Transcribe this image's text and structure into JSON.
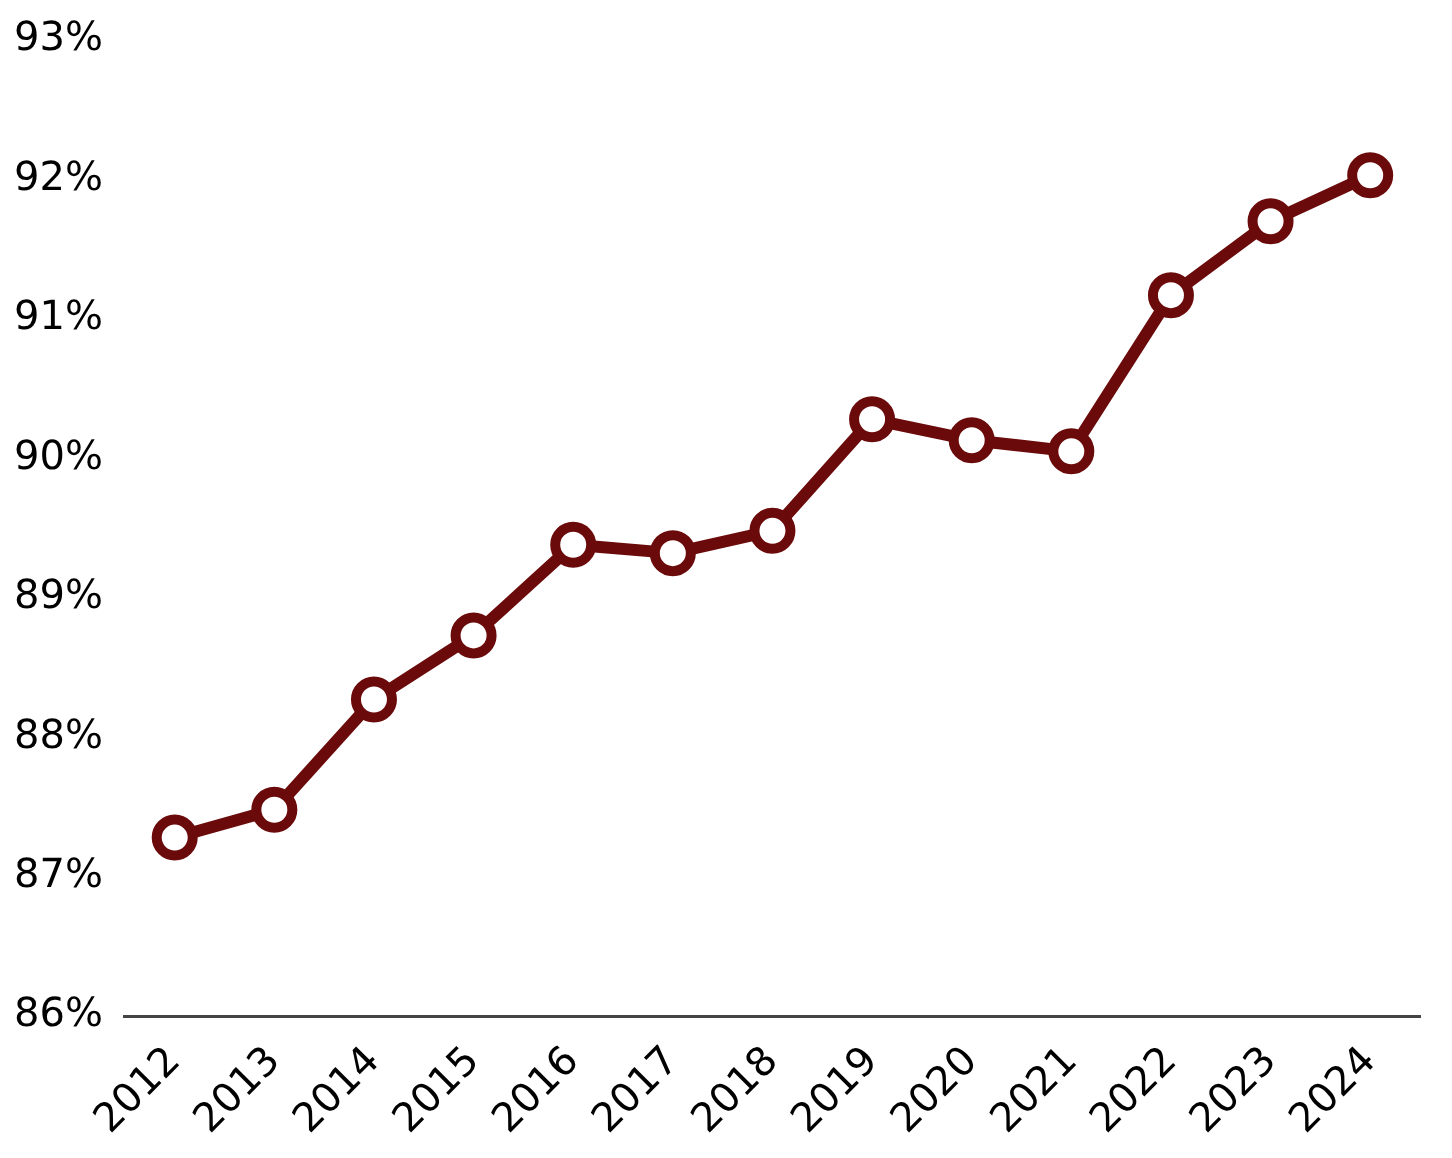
{
  "chart_data": {
    "type": "line",
    "categories": [
      "2012",
      "2013",
      "2014",
      "2015",
      "2016",
      "2017",
      "2018",
      "2019",
      "2020",
      "2021",
      "2022",
      "2023",
      "2024"
    ],
    "series": [
      {
        "color": "#6b0a0a",
        "values": [
          87.28,
          87.48,
          88.27,
          88.73,
          89.38,
          89.32,
          89.48,
          90.28,
          90.13,
          90.05,
          91.17,
          91.7,
          92.03
        ]
      }
    ],
    "ylim": [
      86,
      93
    ],
    "yticks": [
      {
        "value": 86,
        "label": "86%"
      },
      {
        "value": 87,
        "label": "87%"
      },
      {
        "value": 88,
        "label": "88%"
      },
      {
        "value": 89,
        "label": "89%"
      },
      {
        "value": 90,
        "label": "90%"
      },
      {
        "value": 91,
        "label": "91%"
      },
      {
        "value": 92,
        "label": "92%"
      },
      {
        "value": 93,
        "label": "93%"
      }
    ],
    "grid": false,
    "legend": false,
    "marker": "circle",
    "line_style": "solid"
  }
}
